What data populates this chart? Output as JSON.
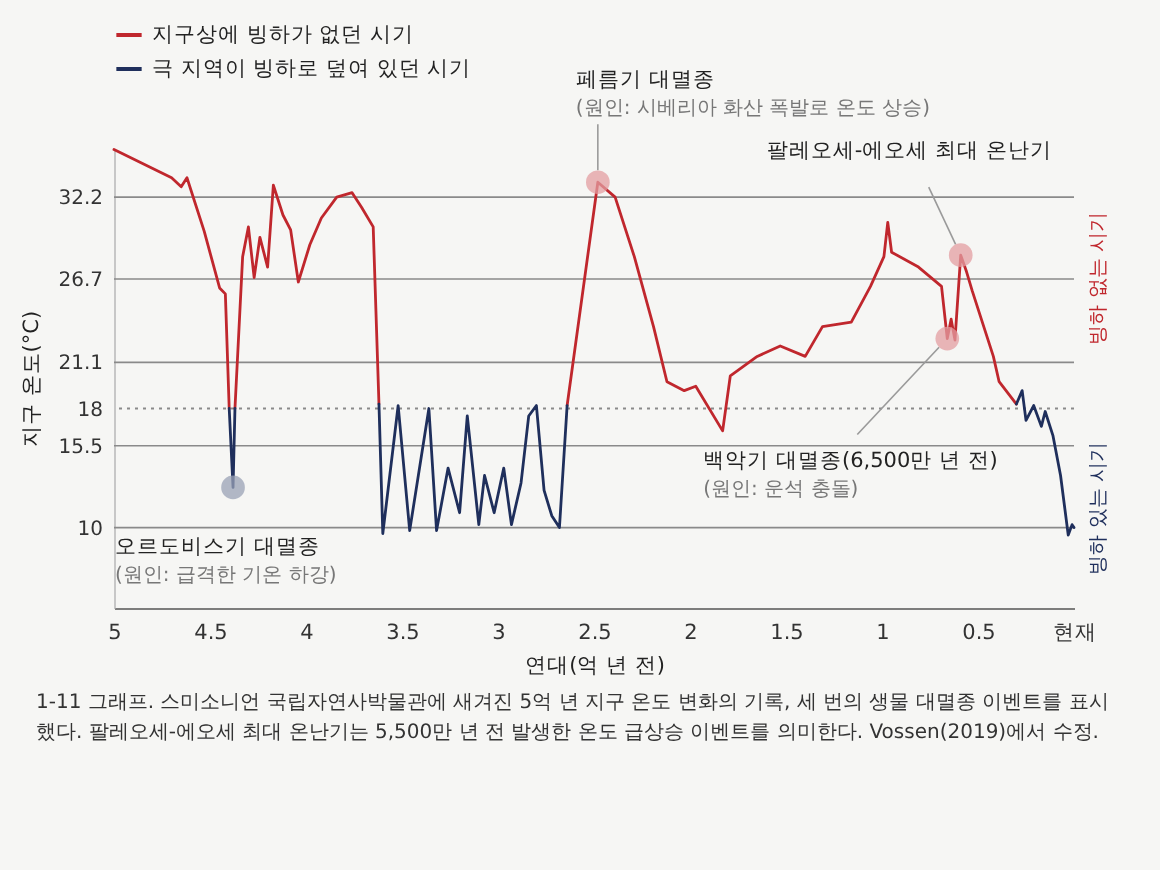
{
  "chart_data": {
    "type": "line",
    "xlabel": "연대(억 년 전)",
    "ylabel": "지구 온도(°C)",
    "xlim": [
      5,
      0
    ],
    "xticks": [
      5,
      4.5,
      4,
      3.5,
      3,
      2.5,
      2,
      1.5,
      1,
      0.5,
      {
        "value": 0,
        "label": "현재"
      }
    ],
    "ylim": [
      4.6,
      35.5
    ],
    "yticks": [
      10,
      15.5,
      18,
      21.1,
      26.7,
      32.2
    ],
    "grid": "y",
    "legend": "top left",
    "ref_lines": [
      {
        "axis": "y",
        "value": 18,
        "line_style": "dotted",
        "color": "#8a8a8a"
      }
    ],
    "series": [
      {
        "name": "지구상에 빙하가 없던 시기",
        "color": "#c0272d",
        "x": [
          5.0,
          4.7,
          4.65,
          4.62,
          4.53,
          4.45,
          4.42,
          4.4,
          4.39,
          4.37,
          4.33,
          4.3,
          4.27,
          4.24,
          4.2,
          4.17,
          4.12,
          4.08,
          4.04,
          3.98,
          3.92,
          3.84,
          3.76,
          3.71,
          3.65,
          3.62,
          3.0,
          2.64,
          2.48,
          2.39,
          2.29,
          2.19,
          2.12,
          2.03,
          1.97,
          1.83,
          1.79,
          1.65,
          1.53,
          1.4,
          1.31,
          1.16,
          1.06,
          0.99,
          0.97,
          0.95,
          0.81,
          0.69,
          0.66,
          0.64,
          0.62,
          0.59,
          0.56,
          0.53,
          0.47,
          0.42,
          0.39,
          0.33,
          0.3
        ],
        "values": [
          35.4,
          33.5,
          32.9,
          33.5,
          29.9,
          26.1,
          25.7,
          18,
          null,
          18,
          28.2,
          30.2,
          26.8,
          29.5,
          27.5,
          33,
          31,
          30,
          26.5,
          29,
          30.8,
          32.2,
          32.5,
          31.5,
          30.2,
          18.3,
          null,
          18.2,
          33.2,
          32.2,
          28.2,
          23.5,
          19.8,
          19.2,
          19.5,
          16.5,
          20.2,
          21.5,
          22.2,
          21.5,
          23.5,
          23.8,
          26.2,
          28.2,
          30.5,
          28.5,
          27.5,
          26.2,
          22.7,
          24,
          22.6,
          28.3,
          27.2,
          25.9,
          23.5,
          21.5,
          19.8,
          18.8,
          18.3
        ]
      },
      {
        "name": "극 지역이 빙하로 덮여 있던 시기",
        "color": "#1f2f5c",
        "x": [
          4.4,
          4.38,
          4.37,
          4.0,
          3.62,
          3.6,
          3.52,
          3.46,
          3.36,
          3.32,
          3.26,
          3.2,
          3.16,
          3.1,
          3.07,
          3.02,
          2.97,
          2.93,
          2.88,
          2.84,
          2.8,
          2.76,
          2.72,
          2.68,
          2.64,
          1.5,
          0.3,
          0.27,
          0.25,
          0.21,
          0.17,
          0.15,
          0.11,
          0.07,
          0.05,
          0.03,
          0.01,
          0
        ],
        "values": [
          18,
          12.7,
          18,
          null,
          18.3,
          9.6,
          18.2,
          9.8,
          18,
          9.8,
          14,
          11,
          17.5,
          10.2,
          13.5,
          11,
          14,
          10.2,
          13,
          17.5,
          18.2,
          12.5,
          10.8,
          10,
          18.2,
          null,
          18.3,
          19.2,
          17.2,
          18.2,
          16.8,
          17.8,
          16.2,
          13.5,
          11.5,
          9.5,
          10.2,
          10
        ]
      }
    ],
    "annotations": [
      {
        "text": "오르도비스기 대멸종\n(원인: 급격한 기온 하강)",
        "x": 4.38,
        "y": 12.7
      },
      {
        "text": "페름기 대멸종\n(원인: 시베리아 화산 폭발로 온도 상승)",
        "x": 2.48,
        "y": 33.2
      },
      {
        "text": "백악기 대멸종(6,500만 년 전)\n(원인: 운석 충돌)",
        "x": 0.66,
        "y": 22.7
      },
      {
        "text": "팔레오세-에오세 최대 온난기",
        "x": 0.59,
        "y": 28.3
      },
      "빙하 없는 시기",
      "빙하 있는 시기",
      "1-11 그래프. 스미소니언 국립자연사박물관에 새겨진 5억 년 지구 온도 변화의 기록, 세 번의 생물 대멸종 이벤트를 표시했다. 팔레오세-에오세 최대 온난기는 5,500만 년 전 발생한 온도 급상승 이벤트를 의미한다. Vossen(2019)에서 수정."
    ]
  }
}
